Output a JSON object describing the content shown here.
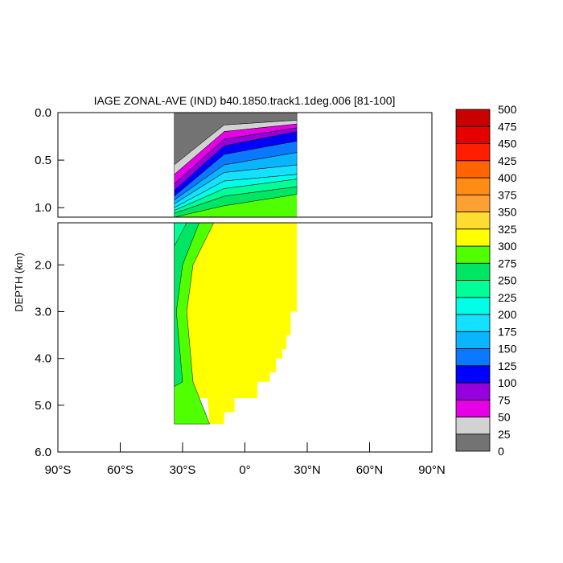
{
  "chart_data": {
    "type": "heatmap",
    "title": "IAGE ZONAL-AVE (IND) b40.1850.track1.1deg.006 [81-100]",
    "ylabel": "DEPTH (km)",
    "xlim": [
      -90,
      90
    ],
    "ylim": [
      6.0,
      0.0
    ],
    "panel_split_depth": 1.1,
    "x_ticks": [
      {
        "value": -90,
        "label": "90°S"
      },
      {
        "value": -60,
        "label": "60°S"
      },
      {
        "value": -30,
        "label": "30°S"
      },
      {
        "value": 0,
        "label": "0°"
      },
      {
        "value": 30,
        "label": "30°N"
      },
      {
        "value": 60,
        "label": "60°N"
      },
      {
        "value": 90,
        "label": "90°N"
      }
    ],
    "y_ticks_upper": [
      {
        "value": 0.0,
        "label": "0.0"
      },
      {
        "value": 0.5,
        "label": "0.5"
      },
      {
        "value": 1.0,
        "label": "1.0"
      }
    ],
    "y_ticks_lower": [
      {
        "value": 2.0,
        "label": "2.0"
      },
      {
        "value": 3.0,
        "label": "3.0"
      },
      {
        "value": 4.0,
        "label": "4.0"
      },
      {
        "value": 5.0,
        "label": "5.0"
      },
      {
        "value": 6.0,
        "label": "6.0"
      }
    ],
    "colorbar": {
      "levels": [
        0,
        25,
        50,
        75,
        100,
        125,
        150,
        175,
        200,
        225,
        250,
        275,
        300,
        325,
        350,
        375,
        400,
        425,
        450,
        475,
        500
      ],
      "labels": [
        "0",
        "25",
        "50",
        "75",
        "100",
        "125",
        "150",
        "175",
        "200",
        "225",
        "250",
        "275",
        "300",
        "325",
        "350",
        "375",
        "400",
        "425",
        "450",
        "475",
        "500"
      ],
      "colors": [
        "#737373",
        "#d2d2d2",
        "#e600e6",
        "#9600dc",
        "#0000ff",
        "#0a78ff",
        "#0ab4ff",
        "#14e1ff",
        "#00ffe6",
        "#00ff96",
        "#00e664",
        "#50ff00",
        "#ffff00",
        "#ffdc32",
        "#ffa032",
        "#ff8c14",
        "#ff6400",
        "#ff1e00",
        "#e60000",
        "#c80000"
      ]
    },
    "data_extent": {
      "lat_south": -34,
      "lat_north": 25
    },
    "upper_bands_south_edge": [
      {
        "level": 25,
        "depth": 0.55
      },
      {
        "level": 50,
        "depth": 0.65
      },
      {
        "level": 75,
        "depth": 0.75
      },
      {
        "level": 100,
        "depth": 0.82
      },
      {
        "level": 125,
        "depth": 0.88
      },
      {
        "level": 150,
        "depth": 0.92
      },
      {
        "level": 175,
        "depth": 0.96
      },
      {
        "level": 200,
        "depth": 1.0
      },
      {
        "level": 225,
        "depth": 1.03
      },
      {
        "level": 250,
        "depth": 1.06
      },
      {
        "level": 275,
        "depth": 1.1
      }
    ],
    "upper_bands_north_edge": [
      {
        "level": 25,
        "depth": 0.08
      },
      {
        "level": 50,
        "depth": 0.12
      },
      {
        "level": 75,
        "depth": 0.16
      },
      {
        "level": 100,
        "depth": 0.2
      },
      {
        "level": 125,
        "depth": 0.3
      },
      {
        "level": 150,
        "depth": 0.42
      },
      {
        "level": 175,
        "depth": 0.55
      },
      {
        "level": 200,
        "depth": 0.65
      },
      {
        "level": 225,
        "depth": 0.7
      },
      {
        "level": 250,
        "depth": 0.78
      },
      {
        "level": 275,
        "depth": 0.86
      }
    ],
    "upper_bands_mid_edge": [
      {
        "level": 25,
        "depth": 0.13
      },
      {
        "level": 50,
        "depth": 0.2
      },
      {
        "level": 75,
        "depth": 0.28
      },
      {
        "level": 100,
        "depth": 0.35
      },
      {
        "level": 125,
        "depth": 0.44
      },
      {
        "level": 150,
        "depth": 0.55
      },
      {
        "level": 175,
        "depth": 0.63
      },
      {
        "level": 200,
        "depth": 0.72
      },
      {
        "level": 225,
        "depth": 0.8
      },
      {
        "level": 250,
        "depth": 0.88
      },
      {
        "level": 275,
        "depth": 0.98
      }
    ],
    "lower_bands": [
      {
        "level": 225,
        "north_lat_at_top": -28
      },
      {
        "level": 250,
        "north_lat_at_top": -22
      },
      {
        "level": 275,
        "north_lat_at_top": -15
      }
    ]
  }
}
